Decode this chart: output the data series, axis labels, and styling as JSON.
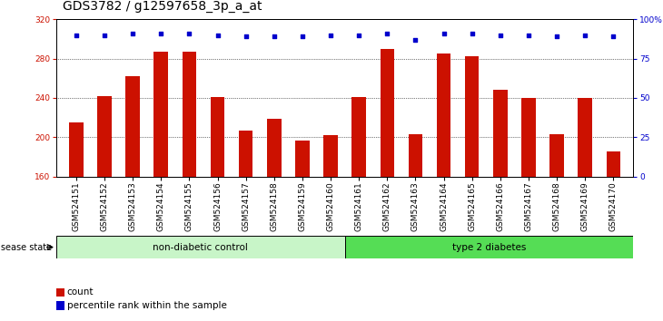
{
  "title": "GDS3782 / g12597658_3p_a_at",
  "samples": [
    "GSM524151",
    "GSM524152",
    "GSM524153",
    "GSM524154",
    "GSM524155",
    "GSM524156",
    "GSM524157",
    "GSM524158",
    "GSM524159",
    "GSM524160",
    "GSM524161",
    "GSM524162",
    "GSM524163",
    "GSM524164",
    "GSM524165",
    "GSM524166",
    "GSM524167",
    "GSM524168",
    "GSM524169",
    "GSM524170"
  ],
  "bar_values": [
    215,
    242,
    262,
    287,
    287,
    241,
    207,
    219,
    197,
    202,
    241,
    290,
    203,
    285,
    282,
    248,
    240,
    203,
    240,
    186
  ],
  "percentile_ranks": [
    90,
    90,
    91,
    91,
    91,
    90,
    89,
    89,
    89,
    90,
    90,
    91,
    87,
    91,
    91,
    90,
    90,
    89,
    90,
    89
  ],
  "bar_color": "#CC1100",
  "dot_color": "#0000CC",
  "ylim_left": [
    160,
    320
  ],
  "ylim_right": [
    0,
    100
  ],
  "yticks_left": [
    160,
    200,
    240,
    280,
    320
  ],
  "yticks_right": [
    0,
    25,
    50,
    75,
    100
  ],
  "ytick_labels_right": [
    "0",
    "25",
    "50",
    "75",
    "100%"
  ],
  "title_fontsize": 10,
  "tick_fontsize": 6.5,
  "legend_count_label": "count",
  "legend_pct_label": "percentile rank within the sample",
  "disease_state_label": "disease state",
  "split_index": 10,
  "nd_color": "#C8F5C8",
  "t2d_color": "#55DD55",
  "bar_width": 0.5
}
